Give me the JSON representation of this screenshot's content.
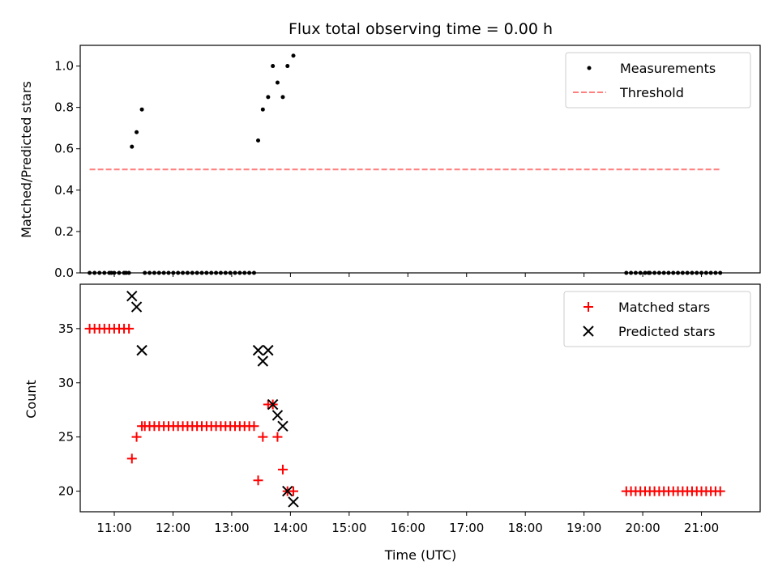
{
  "chart_data": [
    {
      "type": "scatter",
      "title": "Flux total observing time = 0.00 h",
      "xlabel": "",
      "ylabel": "Matched/Predicted stars",
      "xlim": [
        10.42,
        22.0
      ],
      "ylim": [
        0.0,
        1.1
      ],
      "yticks": [
        0.0,
        0.2,
        0.4,
        0.6,
        0.8,
        1.0
      ],
      "ytick_labels": [
        "0.0",
        "0.2",
        "0.4",
        "0.6",
        "0.8",
        "1.0"
      ],
      "legend_location": "top-right",
      "series": [
        {
          "name": "Measurements",
          "marker": "dot",
          "color": "#000000",
          "x": [
            10.95,
            11.3,
            11.38,
            11.47,
            13.45,
            13.53,
            13.62,
            13.7,
            13.78,
            13.87,
            13.95,
            14.05,
            11.2,
            20.1
          ],
          "y": [
            0.0,
            0.61,
            0.68,
            0.79,
            0.64,
            0.79,
            0.85,
            1.0,
            0.92,
            0.85,
            1.0,
            1.05,
            0.0,
            0.0
          ]
        }
      ],
      "zero_runs": [
        {
          "start": 10.58,
          "end": 11.25,
          "count": 9
        },
        {
          "start": 11.52,
          "end": 13.38,
          "count": 24
        },
        {
          "start": 19.72,
          "end": 21.32,
          "count": 21
        }
      ],
      "threshold": {
        "name": "Threshold",
        "y": 0.5,
        "x_start": 10.58,
        "x_end": 21.32,
        "color": "#ff7f7f"
      }
    },
    {
      "type": "scatter",
      "title": "",
      "xlabel": "Time (UTC)",
      "ylabel": "Count",
      "xlim": [
        10.42,
        22.0
      ],
      "ylim": [
        18.1,
        39.1
      ],
      "yticks": [
        20,
        25,
        30,
        35
      ],
      "ytick_labels": [
        "20",
        "25",
        "30",
        "35"
      ],
      "xticks": [
        11,
        12,
        13,
        14,
        15,
        16,
        17,
        18,
        19,
        20,
        21
      ],
      "xtick_labels": [
        "11:00",
        "12:00",
        "13:00",
        "14:00",
        "15:00",
        "16:00",
        "17:00",
        "18:00",
        "19:00",
        "20:00",
        "21:00"
      ],
      "legend_location": "top-right",
      "series": [
        {
          "name": "Matched stars",
          "marker": "plus",
          "color": "#ff0000",
          "runs": [
            {
              "start": 10.58,
              "end": 11.25,
              "count": 9,
              "y": 35
            },
            {
              "start": 11.52,
              "end": 13.38,
              "count": 24,
              "y": 26
            },
            {
              "start": 19.72,
              "end": 21.32,
              "count": 21,
              "y": 20
            }
          ],
          "x": [
            11.3,
            11.38,
            11.47,
            13.45,
            13.53,
            13.62,
            13.7,
            13.78,
            13.87,
            13.95,
            14.05
          ],
          "y": [
            23,
            25,
            26,
            21,
            25,
            28,
            28,
            25,
            22,
            20,
            20
          ]
        },
        {
          "name": "Predicted stars",
          "marker": "x",
          "color": "#000000",
          "x": [
            11.3,
            11.38,
            11.47,
            13.45,
            13.53,
            13.62,
            13.7,
            13.78,
            13.87,
            13.95,
            14.05
          ],
          "y": [
            38,
            37,
            33,
            33,
            32,
            33,
            28,
            27,
            26,
            20,
            19
          ]
        }
      ]
    }
  ]
}
